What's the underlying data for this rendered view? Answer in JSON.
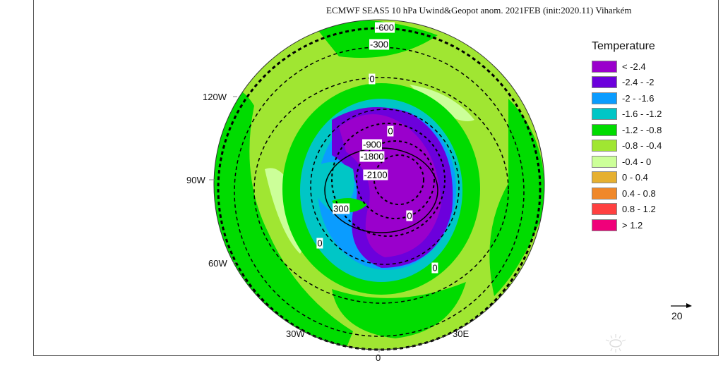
{
  "title": "ECMWF SEAS5 10 hPa Uwind&Geopot anom. 2021FEB (init:2020.11) Viharkém",
  "map": {
    "projection": "north-polar-stereographic",
    "longitude_labels": [
      "120W",
      "90W",
      "60W",
      "30W",
      "0",
      "30E"
    ],
    "contour_labels": [
      "-600",
      "-300",
      "0",
      "0",
      "-900",
      "-1800",
      "-2100",
      "300",
      "0",
      "0",
      "0"
    ]
  },
  "legend": {
    "title": "Temperature",
    "items": [
      {
        "label": "< -2.4",
        "color": "#9a00cc"
      },
      {
        "label": "-2.4 - -2",
        "color": "#6c00dc"
      },
      {
        "label": "-2 - -1.6",
        "color": "#0a9cff"
      },
      {
        "label": "-1.6 - -1.2",
        "color": "#00c6c6"
      },
      {
        "label": "-1.2 - -0.8",
        "color": "#00dc00"
      },
      {
        "label": "-0.8 - -0.4",
        "color": "#a0e632"
      },
      {
        "label": "-0.4 - 0",
        "color": "#ccff99"
      },
      {
        "label": "0 - 0.4",
        "color": "#e6b030"
      },
      {
        "label": "0.4 - 0.8",
        "color": "#f0882a"
      },
      {
        "label": "0.8 - 1.2",
        "color": "#ff4040"
      },
      {
        "label": "> 1.2",
        "color": "#f0007a"
      }
    ]
  },
  "vector_reference": {
    "label": "20"
  }
}
